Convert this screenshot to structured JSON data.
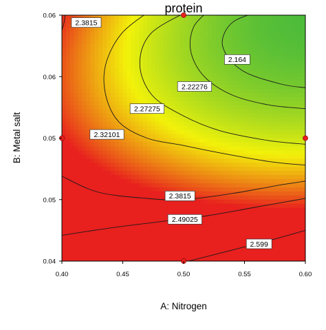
{
  "chart_data": {
    "type": "contour",
    "title": "protein",
    "xlabel": "A: Nitrogen",
    "ylabel": "B: Metal salt",
    "xlim": [
      0.4,
      0.6
    ],
    "ylim": [
      0.04,
      0.06
    ],
    "x_ticks": [
      "0.40",
      "0.45",
      "0.50",
      "0.55",
      "0.60"
    ],
    "y_ticks": [
      "0.04",
      "0.05",
      "0.05",
      "0.06",
      "0.06"
    ],
    "grid": false,
    "colormap": {
      "low": "#4cbb3a",
      "mid": "#f2f20a",
      "high": "#e8201e"
    },
    "design_point_color": "#e8211d",
    "design_points": [
      {
        "x": 0.4,
        "y": 0.05
      },
      {
        "x": 0.5,
        "y": 0.06
      },
      {
        "x": 0.6,
        "y": 0.05
      },
      {
        "x": 0.5,
        "y": 0.04
      }
    ],
    "contours": [
      {
        "label": "2.164",
        "value": 2.164,
        "points": [
          [
            0.566,
            0.0604
          ],
          [
            0.54,
            0.0594
          ],
          [
            0.532,
            0.0575
          ],
          [
            0.548,
            0.0555
          ],
          [
            0.58,
            0.0544
          ],
          [
            0.6,
            0.0541
          ]
        ],
        "label_at": [
          0.544,
          0.0564
        ]
      },
      {
        "label": "2.22276",
        "value": 2.22276,
        "points": [
          [
            0.521,
            0.0604
          ],
          [
            0.508,
            0.059
          ],
          [
            0.506,
            0.057
          ],
          [
            0.517,
            0.055
          ],
          [
            0.54,
            0.0535
          ],
          [
            0.57,
            0.0527
          ],
          [
            0.6,
            0.0524
          ]
        ],
        "label_at": [
          0.509,
          0.0542
        ]
      },
      {
        "label": "2.27275",
        "value": 2.27275,
        "points": [
          [
            0.505,
            0.0604
          ],
          [
            0.473,
            0.0585
          ],
          [
            0.464,
            0.056
          ],
          [
            0.474,
            0.0535
          ],
          [
            0.5,
            0.0518
          ],
          [
            0.53,
            0.0506
          ],
          [
            0.57,
            0.0498
          ],
          [
            0.6,
            0.0495
          ]
        ],
        "label_at": [
          0.47,
          0.0524
        ]
      },
      {
        "label": "2.32101",
        "value": 2.32101,
        "points": [
          [
            0.473,
            0.0604
          ],
          [
            0.449,
            0.0585
          ],
          [
            0.436,
            0.056
          ],
          [
            0.436,
            0.0535
          ],
          [
            0.447,
            0.0513
          ],
          [
            0.47,
            0.05
          ],
          [
            0.5,
            0.0494
          ],
          [
            0.53,
            0.0488
          ],
          [
            0.57,
            0.0481
          ],
          [
            0.6,
            0.0478
          ]
        ],
        "label_at": [
          0.437,
          0.0503
        ]
      },
      {
        "label": "2.3815",
        "value": 2.3815,
        "points": [
          [
            0.4,
            0.0588
          ],
          [
            0.402,
            0.0595
          ],
          [
            0.403,
            0.0604
          ]
        ],
        "label_at": [
          0.42,
          0.0594
        ]
      },
      {
        "label": "2.3815",
        "value": 2.3815,
        "points": [
          [
            0.4,
            0.0469
          ],
          [
            0.43,
            0.0456
          ],
          [
            0.47,
            0.0451
          ],
          [
            0.5,
            0.045
          ],
          [
            0.54,
            0.0455
          ],
          [
            0.58,
            0.0462
          ],
          [
            0.6,
            0.0465
          ]
        ],
        "label_at": [
          0.497,
          0.0453
        ]
      },
      {
        "label": "2.49025",
        "value": 2.49025,
        "points": [
          [
            0.4,
            0.0421
          ],
          [
            0.44,
            0.0427
          ],
          [
            0.48,
            0.0432
          ],
          [
            0.52,
            0.0437
          ],
          [
            0.56,
            0.0444
          ],
          [
            0.6,
            0.0451
          ]
        ],
        "label_at": [
          0.501,
          0.0434
        ]
      },
      {
        "label": "2.599",
        "value": 2.599,
        "points": [
          [
            0.504,
            0.04
          ],
          [
            0.54,
            0.0409
          ],
          [
            0.575,
            0.0418
          ],
          [
            0.6,
            0.0425
          ]
        ],
        "label_at": [
          0.562,
          0.0414
        ]
      }
    ]
  }
}
